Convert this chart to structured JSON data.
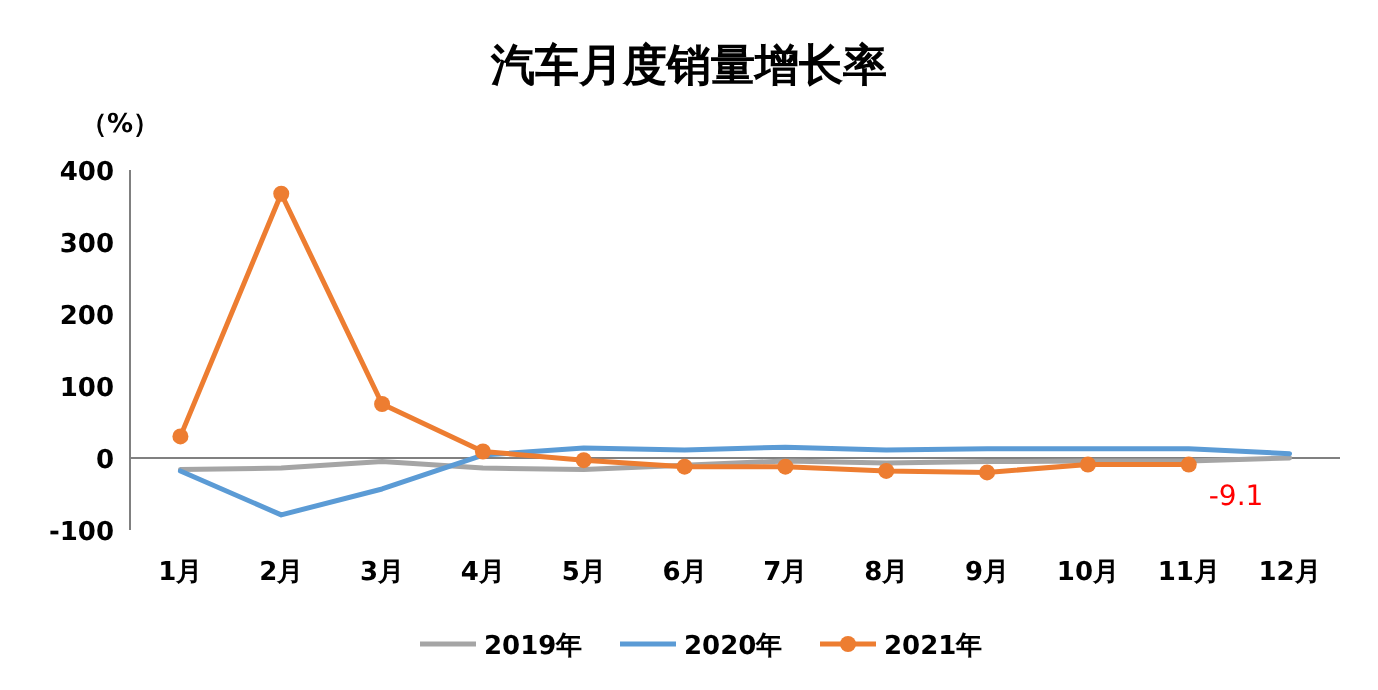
{
  "chart_data": {
    "type": "line",
    "title": "汽车月度销量增长率",
    "ylabel": "（%）",
    "categories": [
      "1月",
      "2月",
      "3月",
      "4月",
      "5月",
      "6月",
      "7月",
      "8月",
      "9月",
      "10月",
      "11月",
      "12月"
    ],
    "series": [
      {
        "name": "2019年",
        "color": "#a5a5a5",
        "marker": "none",
        "values": [
          -16,
          -14,
          -5,
          -14,
          -16,
          -10,
          -4,
          -7,
          -5,
          -4,
          -4,
          0
        ]
      },
      {
        "name": "2020年",
        "color": "#5b9bd5",
        "marker": "none",
        "values": [
          -18,
          -79,
          -43,
          4,
          14,
          11,
          15,
          11,
          13,
          13,
          13,
          6
        ]
      },
      {
        "name": "2021年",
        "color": "#ed7d31",
        "marker": "circle",
        "values": [
          30,
          367,
          75,
          9,
          -3,
          -12,
          -12,
          -18,
          -20,
          -9,
          -9.1,
          null
        ]
      }
    ],
    "ylim": [
      -100,
      400
    ],
    "yticks": [
      -100,
      0,
      100,
      200,
      300,
      400
    ],
    "annotations": [
      {
        "text": "-9.1",
        "x": "11月",
        "y": -9.1
      }
    ],
    "ref_lines": [
      {
        "axis": "y",
        "value": 0,
        "color": "#808080"
      }
    ],
    "grid": false,
    "legend": "bottom",
    "line_style": "solid"
  }
}
